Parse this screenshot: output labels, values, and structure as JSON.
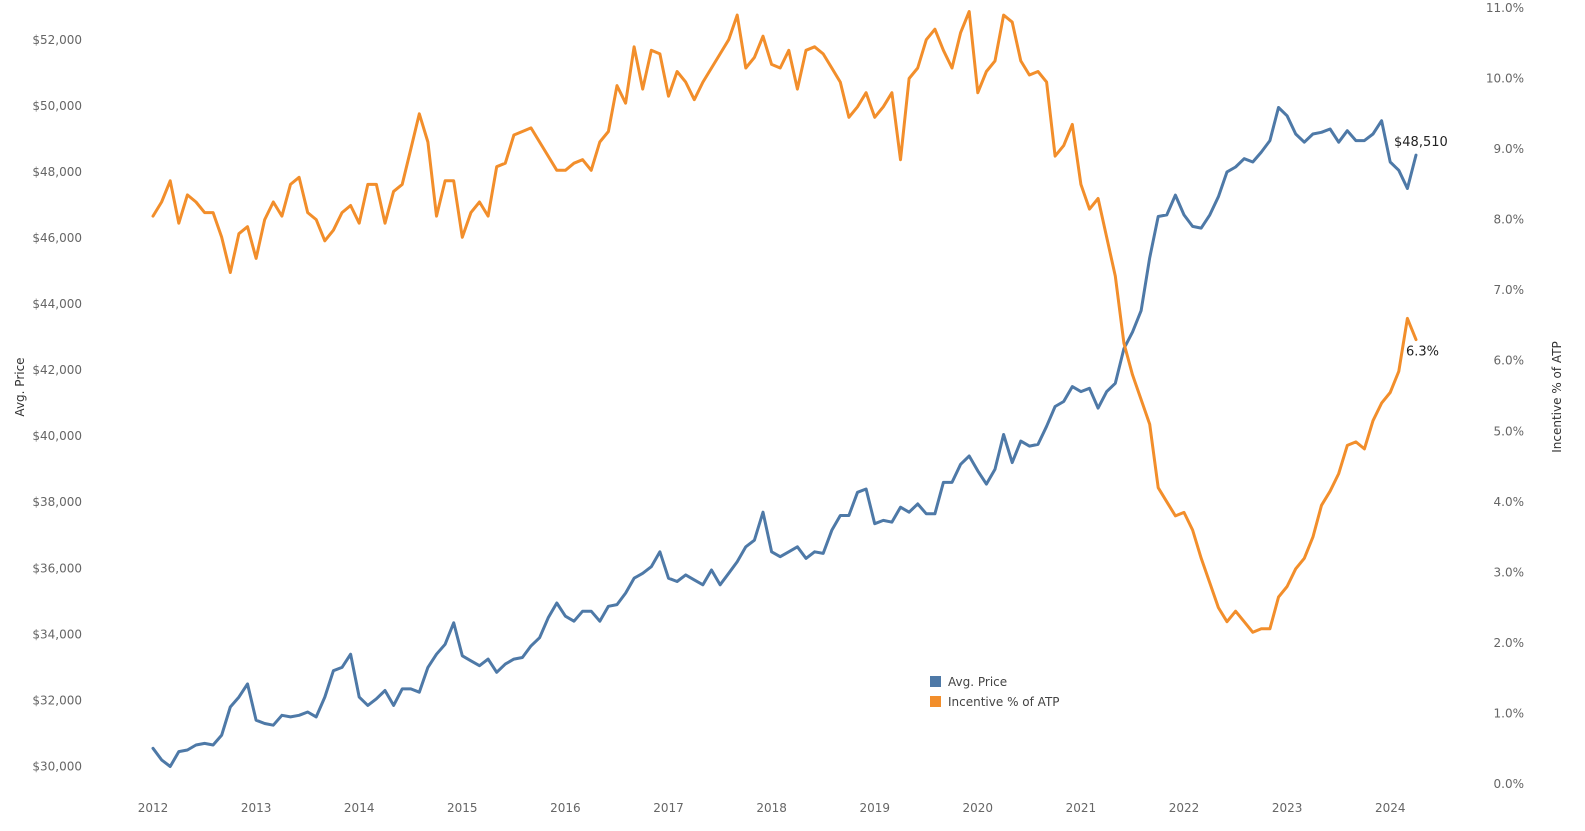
{
  "chart_data": {
    "type": "line",
    "dual_axis": true,
    "grid": false,
    "legend_position": "bottom-center",
    "x_axis": {
      "ticks": [
        "2012",
        "2013",
        "2014",
        "2015",
        "2016",
        "2017",
        "2018",
        "2019",
        "2020",
        "2021",
        "2022",
        "2023",
        "2024"
      ],
      "range": [
        2012.0,
        2024.25
      ]
    },
    "y_left": {
      "label": "Avg. Price",
      "ticks": [
        "$30,000",
        "$32,000",
        "$34,000",
        "$36,000",
        "$38,000",
        "$40,000",
        "$42,000",
        "$44,000",
        "$46,000",
        "$48,000",
        "$50,000",
        "$52,000"
      ],
      "range": [
        29500,
        52600
      ]
    },
    "y_right": {
      "label": "Incentive % of ATP",
      "ticks": [
        "0.0%",
        "1.0%",
        "2.0%",
        "3.0%",
        "4.0%",
        "5.0%",
        "6.0%",
        "7.0%",
        "8.0%",
        "9.0%",
        "10.0%",
        "11.0%"
      ],
      "range": [
        0,
        11
      ]
    },
    "series": [
      {
        "name": "Avg. Price",
        "axis": "left",
        "color": "#4e79a7",
        "end_label": "$48,510",
        "start": 2012.0,
        "step_months": 1,
        "values": [
          30550,
          30200,
          30000,
          30450,
          30500,
          30650,
          30700,
          30650,
          30950,
          31800,
          32100,
          32500,
          31400,
          31300,
          31250,
          31550,
          31500,
          31550,
          31650,
          31500,
          32100,
          32900,
          33000,
          33400,
          32100,
          31850,
          32050,
          32300,
          31850,
          32350,
          32350,
          32250,
          33000,
          33400,
          33700,
          34350,
          33350,
          33200,
          33050,
          33250,
          32850,
          33100,
          33250,
          33300,
          33650,
          33900,
          34500,
          34950,
          34550,
          34400,
          34700,
          34700,
          34400,
          34850,
          34900,
          35250,
          35700,
          35850,
          36050,
          36500,
          35700,
          35600,
          35800,
          35650,
          35500,
          35950,
          35500,
          35850,
          36200,
          36650,
          36850,
          37700,
          36500,
          36350,
          36500,
          36650,
          36300,
          36500,
          36450,
          37150,
          37600,
          37600,
          38300,
          38400,
          37350,
          37450,
          37400,
          37850,
          37700,
          37950,
          37650,
          37650,
          38600,
          38600,
          39150,
          39400,
          38950,
          38550,
          39000,
          40050,
          39200,
          39850,
          39700,
          39750,
          40300,
          40900,
          41050,
          41500,
          41350,
          41450,
          40850,
          41350,
          41600,
          42650,
          43150,
          43800,
          45400,
          46650,
          46700,
          47300,
          46700,
          46350,
          46300,
          46700,
          47250,
          48000,
          48150,
          48400,
          48300,
          48600,
          48950,
          49950,
          49700,
          49150,
          48900,
          49150,
          49200,
          49300,
          48900,
          49250,
          48950,
          48950,
          49150,
          49550,
          48300,
          48050,
          47500,
          48510
        ]
      },
      {
        "name": "Incentive % of ATP",
        "axis": "right",
        "color": "#f28e2b",
        "end_label": "6.3%",
        "start": 2012.0,
        "step_months": 1,
        "values": [
          8.05,
          8.25,
          8.55,
          7.95,
          8.35,
          8.25,
          8.1,
          8.1,
          7.75,
          7.25,
          7.8,
          7.9,
          7.45,
          8.0,
          8.25,
          8.05,
          8.5,
          8.6,
          8.1,
          8.0,
          7.7,
          7.85,
          8.1,
          8.2,
          7.95,
          8.5,
          8.5,
          7.95,
          8.4,
          8.5,
          9.0,
          9.5,
          9.1,
          8.05,
          8.55,
          8.55,
          7.75,
          8.1,
          8.25,
          8.05,
          8.75,
          8.8,
          9.2,
          9.25,
          9.3,
          9.1,
          8.9,
          8.7,
          8.7,
          8.8,
          8.85,
          8.7,
          9.1,
          9.25,
          9.9,
          9.65,
          10.45,
          9.85,
          10.4,
          10.35,
          9.75,
          10.1,
          9.95,
          9.7,
          9.95,
          10.15,
          10.35,
          10.55,
          10.9,
          10.15,
          10.3,
          10.6,
          10.2,
          10.15,
          10.4,
          9.85,
          10.4,
          10.45,
          10.35,
          10.15,
          9.95,
          9.45,
          9.6,
          9.8,
          9.45,
          9.6,
          9.8,
          8.85,
          10.0,
          10.15,
          10.55,
          10.7,
          10.4,
          10.15,
          10.65,
          10.95,
          9.8,
          10.1,
          10.25,
          10.9,
          10.8,
          10.25,
          10.05,
          10.1,
          9.95,
          8.9,
          9.05,
          9.35,
          8.5,
          8.15,
          8.3,
          7.75,
          7.2,
          6.25,
          5.8,
          5.45,
          5.1,
          4.2,
          4.0,
          3.8,
          3.85,
          3.6,
          3.2,
          2.85,
          2.5,
          2.3,
          2.45,
          2.3,
          2.15,
          2.2,
          2.2,
          2.65,
          2.8,
          3.05,
          3.2,
          3.5,
          3.95,
          4.15,
          4.4,
          4.8,
          4.85,
          4.75,
          5.15,
          5.4,
          5.55,
          5.85,
          6.6,
          6.3
        ]
      }
    ]
  }
}
